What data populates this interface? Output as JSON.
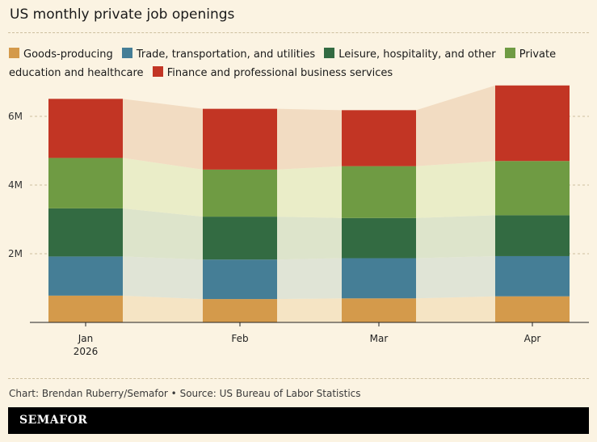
{
  "title": "US monthly private job openings",
  "source": "Chart: Brendan Ruberry/Semafor • Source: US Bureau of Labor Statistics",
  "logo": "SEMAFOR",
  "chart_data": {
    "type": "bar",
    "stacked": true,
    "title": "US monthly private job openings",
    "categories": [
      "Jan\n2026",
      "Feb",
      "Mar",
      "Apr"
    ],
    "ylim": [
      0,
      6.5
    ],
    "yticks": [
      {
        "value": 2,
        "label": "2M"
      },
      {
        "value": 4,
        "label": "4M"
      },
      {
        "value": 6,
        "label": "6M"
      }
    ],
    "grid": true,
    "legend_position": "top",
    "series": [
      {
        "name": "Goods-producing",
        "color": "#d49a4b",
        "band_color": "#f5e4c4",
        "values": [
          0.78,
          0.68,
          0.7,
          0.76
        ]
      },
      {
        "name": "Trade, transportation, and utilities",
        "color": "#457e96",
        "band_color": "#e0e4d6",
        "values": [
          1.14,
          1.15,
          1.17,
          1.17
        ]
      },
      {
        "name": "Leisure, hospitality, and other",
        "color": "#336b42",
        "band_color": "#dde4cb",
        "values": [
          1.4,
          1.25,
          1.17,
          1.19
        ]
      },
      {
        "name": "Private education and healthcare",
        "color": "#6f9b43",
        "band_color": "#eaedc8",
        "values": [
          1.47,
          1.37,
          1.51,
          1.58
        ]
      },
      {
        "name": "Finance and professional business services",
        "color": "#c23524",
        "band_color": "#f2dcc2",
        "values": [
          1.72,
          1.77,
          1.63,
          2.2
        ]
      }
    ]
  }
}
